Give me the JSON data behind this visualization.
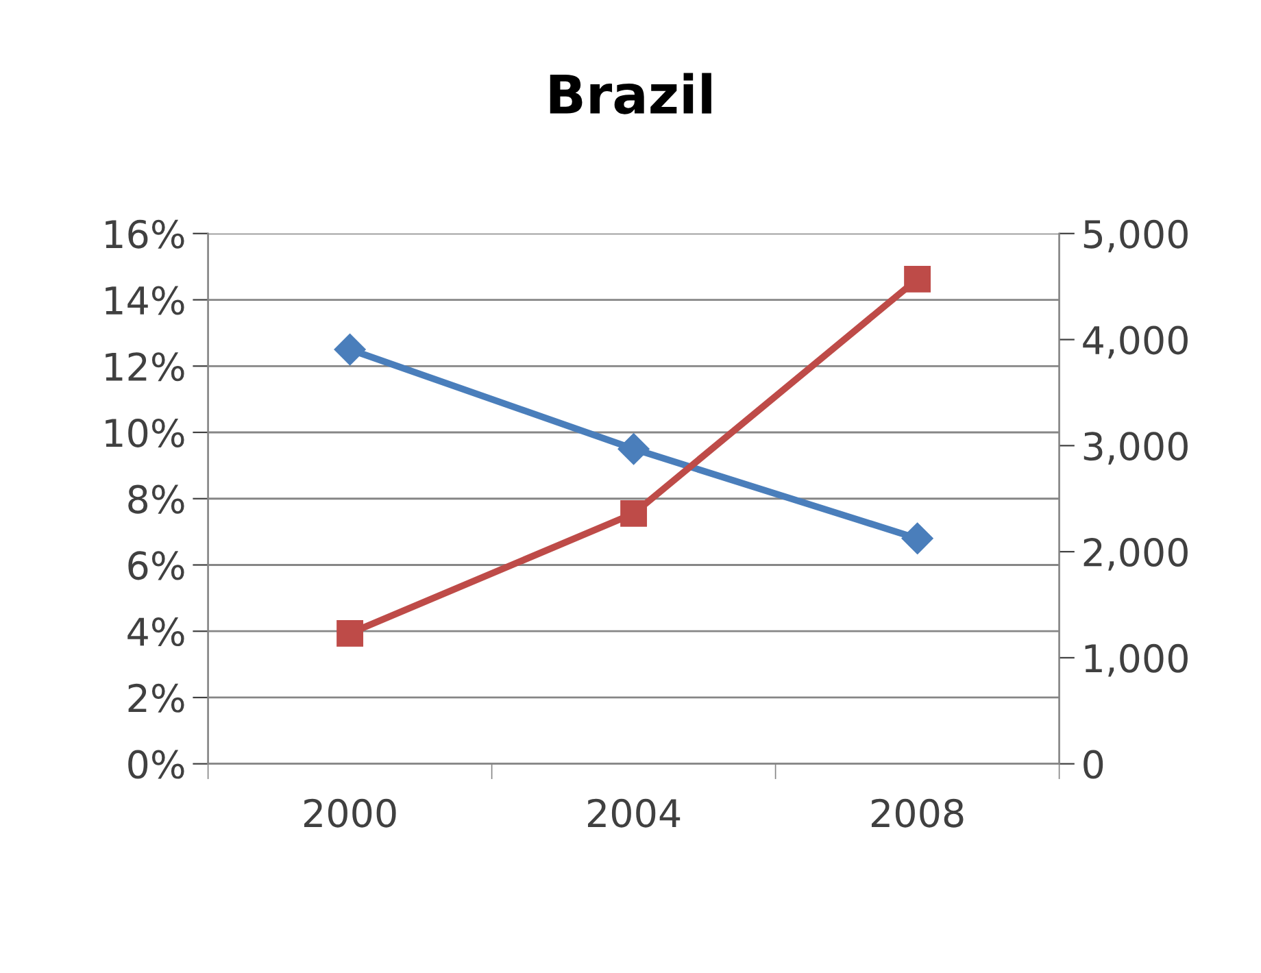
{
  "chart_data": {
    "type": "line",
    "title": "Brazil",
    "categories": [
      "2000",
      "2004",
      "2008"
    ],
    "series": [
      {
        "color": "#4a7ebb",
        "values": [
          12.5,
          9.5,
          6.8
        ],
        "marker": "diamond"
      },
      {
        "color": "#be4b48",
        "values": [
          1230,
          2360,
          4570
        ],
        "marker": "square",
        "axis": "y2"
      }
    ],
    "ylim": [
      0,
      16
    ],
    "yticks": [
      {
        "value": 0,
        "label": "0%"
      },
      {
        "value": 2,
        "label": "2%"
      },
      {
        "value": 4,
        "label": "4%"
      },
      {
        "value": 6,
        "label": "6%"
      },
      {
        "value": 8,
        "label": "8%"
      },
      {
        "value": 10,
        "label": "10%"
      },
      {
        "value": 12,
        "label": "12%"
      },
      {
        "value": 14,
        "label": "14%"
      },
      {
        "value": 16,
        "label": "16%"
      }
    ],
    "y2lim": [
      0,
      5000
    ],
    "y2ticks": [
      0,
      {
        "value": 1000,
        "label": "1,000"
      },
      {
        "value": 2000,
        "label": "2,000"
      },
      {
        "value": 3000,
        "label": "3,000"
      },
      {
        "value": 4000,
        "label": "4,000"
      },
      {
        "value": 5000,
        "label": "5,000"
      }
    ],
    "grid": "y",
    "line_style": "solid"
  }
}
